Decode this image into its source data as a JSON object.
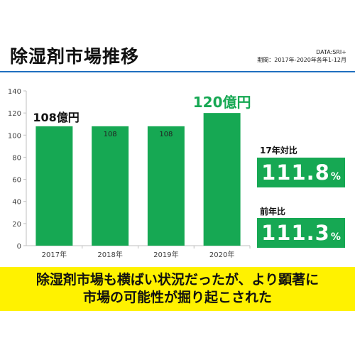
{
  "header": {
    "title": "除湿剤市場推移",
    "source_line1": "DATA:SRI+",
    "source_line2": "期間：2017年-2020年各年1-12月"
  },
  "chart_data": {
    "type": "bar",
    "categories": [
      "2017年",
      "2018年",
      "2019年",
      "2020年"
    ],
    "values": [
      108,
      108,
      108,
      120
    ],
    "ylim": [
      0,
      140
    ],
    "yticks": [
      0,
      20,
      40,
      60,
      80,
      100,
      120,
      140
    ],
    "grid": false,
    "bar_color": "#16a853",
    "data_labels": [
      "108億円",
      "108",
      "108",
      "120億円"
    ],
    "title": "",
    "xlabel": "",
    "ylabel": ""
  },
  "stats": {
    "yoy_label": "17年対比",
    "yoy_value": "111.8",
    "yoy_unit": "%",
    "ratio_label": "前年比",
    "ratio_value": "111.3",
    "ratio_unit": "%"
  },
  "banner": {
    "line1": "除湿剤市場も横ばい状況だったが、より顕著に",
    "line2": "市場の可能性が掘り起こされた",
    "color": "#fff200"
  }
}
